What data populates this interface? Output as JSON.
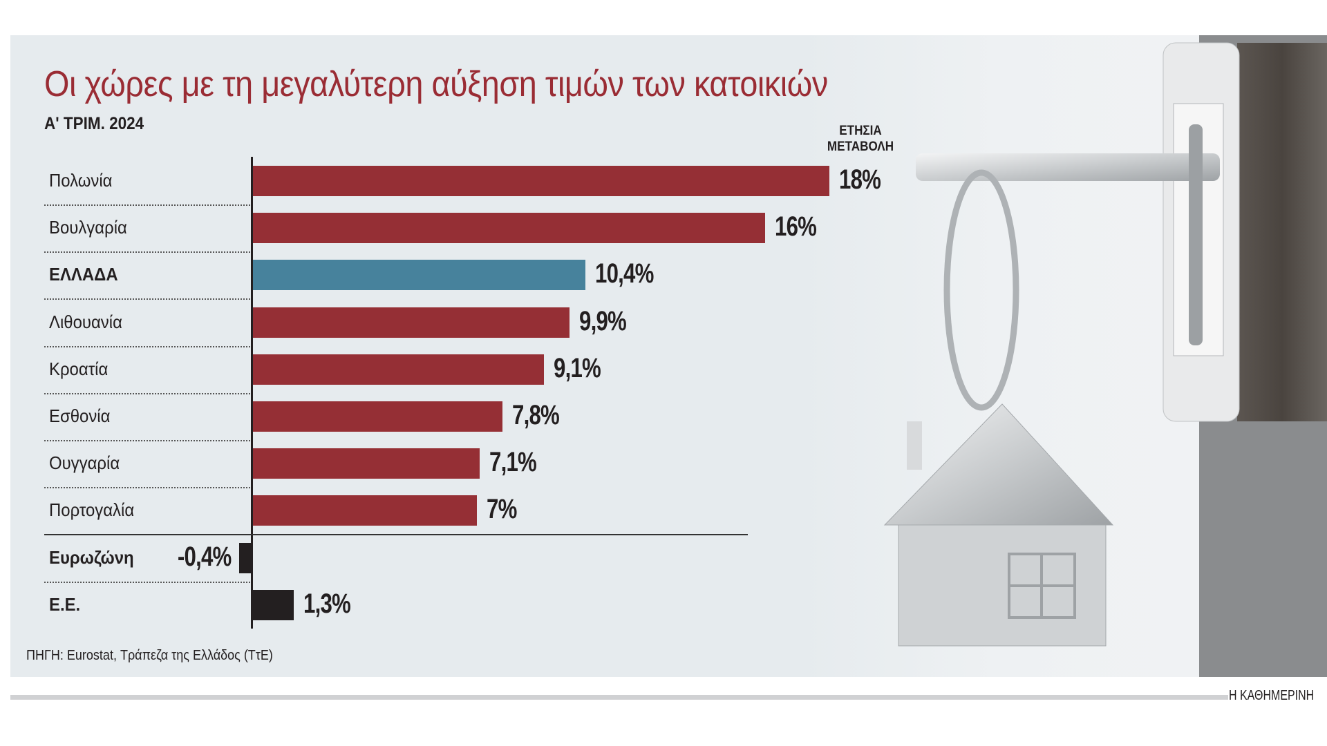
{
  "title": "Οι χώρες με τη μεγαλύτερη αύξηση τιμών των κατοικιών",
  "subtitle": "Α' ΤΡΙΜ. 2024",
  "column_header": [
    "ΕΤΗΣΙΑ",
    "ΜΕΤΑΒΟΛΗ"
  ],
  "source": "ΠΗΓΗ: Eurostat, Τράπεζα της Ελλάδος (ΤτΕ)",
  "brand": "Η ΚΑΘΗΜΕΡΙΝΗ",
  "colors": {
    "country": "#952f35",
    "greece": "#47829c",
    "aggregate": "#231f20"
  },
  "chart_data": {
    "type": "bar",
    "orientation": "horizontal",
    "title": "Οι χώρες με τη μεγαλύτερη αύξηση τιμών των κατοικιών",
    "subtitle": "Α' ΤΡΙΜ. 2024",
    "value_header": "ΕΤΗΣΙΑ ΜΕΤΑΒΟΛΗ",
    "unit": "%",
    "categories": [
      "Πολωνία",
      "Βουλγαρία",
      "ΕΛΛΑΔΑ",
      "Λιθουανία",
      "Κροατία",
      "Εσθονία",
      "Ουγγαρία",
      "Πορτογαλία",
      "Ευρωζώνη",
      "Ε.Ε."
    ],
    "values": [
      18,
      16,
      10.4,
      9.9,
      9.1,
      7.8,
      7.1,
      7,
      -0.4,
      1.3
    ],
    "value_labels": [
      "18%",
      "16%",
      "10,4%",
      "9,9%",
      "9,1%",
      "7,8%",
      "7,1%",
      "7%",
      "-0,4%",
      "1,3%"
    ],
    "kinds": [
      "country",
      "country",
      "greece",
      "country",
      "country",
      "country",
      "country",
      "country",
      "aggregate",
      "aggregate"
    ],
    "bold": [
      false,
      false,
      true,
      false,
      false,
      false,
      false,
      false,
      true,
      true
    ],
    "xlim": [
      -0.4,
      18
    ],
    "grid": false
  }
}
